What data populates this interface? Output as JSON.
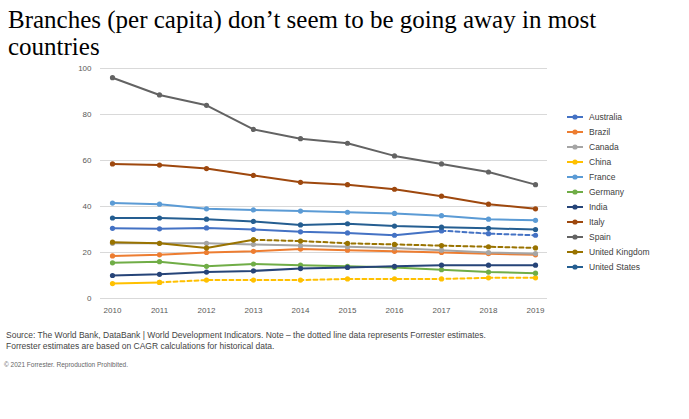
{
  "chart_data": {
    "type": "line",
    "title": "Branches (per capita) don’t seem to be going away in most countries",
    "notes": [
      "Source: The World Bank, DataBank | World Development Indicators. Note – the dotted line data represents Forrester estimates.",
      "Forrester estimates are based on CAGR calculations for historical data."
    ],
    "copyright": "© 2021 Forrester. Reproduction Prohibited.",
    "x": [
      2010,
      2011,
      2012,
      2013,
      2014,
      2015,
      2016,
      2017,
      2018,
      2019
    ],
    "xlim": [
      2010,
      2019
    ],
    "xticks": [
      2010,
      2011,
      2012,
      2013,
      2014,
      2015,
      2016,
      2017,
      2018,
      2019
    ],
    "ylim": [
      0,
      100
    ],
    "yticks": [
      0,
      20,
      40,
      60,
      80,
      100
    ],
    "grid": true,
    "legend": "right",
    "marker": "circle",
    "series": [
      {
        "name": "Australia",
        "color": "#4472c4",
        "line_style": "solid",
        "values": [
          30.5,
          30.3,
          30.7,
          30,
          29,
          28.5,
          27.5,
          29.5,
          null,
          null
        ]
      },
      {
        "name": "Australia",
        "color": "#4472c4",
        "line_style": "dashed",
        "values": [
          null,
          null,
          null,
          null,
          null,
          null,
          null,
          29.5,
          28.2,
          27.5
        ]
      },
      {
        "name": "Brazil",
        "color": "#ed7d31",
        "line_style": "solid",
        "values": [
          18.5,
          19,
          20,
          20.5,
          21.5,
          21,
          20.5,
          20,
          19.5,
          19
        ]
      },
      {
        "name": "Canada",
        "color": "#a5a5a5",
        "line_style": "solid",
        "values": [
          24,
          24,
          24,
          23.5,
          23,
          22.5,
          22,
          21,
          20,
          19.5
        ]
      },
      {
        "name": "China",
        "color": "#ffc000",
        "line_style": "solid",
        "values": [
          6.5,
          7,
          null,
          null,
          null,
          null,
          null,
          null,
          null,
          null
        ]
      },
      {
        "name": "China",
        "color": "#ffc000",
        "line_style": "dashed",
        "values": [
          null,
          7,
          8,
          8,
          8,
          8.5,
          8.5,
          8.5,
          9,
          9
        ]
      },
      {
        "name": "France",
        "color": "#5b9bd5",
        "line_style": "solid",
        "values": [
          41.5,
          41,
          39,
          38.5,
          38,
          37.5,
          37,
          36,
          34.5,
          34
        ]
      },
      {
        "name": "Germany",
        "color": "#70ad47",
        "line_style": "solid",
        "values": [
          15.5,
          16,
          14,
          15,
          14.5,
          14,
          13.5,
          12.5,
          11.5,
          11
        ]
      },
      {
        "name": "India",
        "color": "#264478",
        "line_style": "solid",
        "values": [
          10,
          10.5,
          11.5,
          12,
          13,
          13.5,
          14,
          14.5,
          14.5,
          14.5
        ]
      },
      {
        "name": "Italy",
        "color": "#9e480e",
        "line_style": "solid",
        "values": [
          58.5,
          58,
          56.5,
          53.5,
          50.5,
          49.5,
          47.5,
          44.5,
          41,
          39
        ]
      },
      {
        "name": "Spain",
        "color": "#636363",
        "line_style": "solid",
        "values": [
          96,
          88.5,
          84,
          73.5,
          69.5,
          67.5,
          62,
          58.5,
          55,
          49.5
        ]
      },
      {
        "name": "United Kingdom",
        "color": "#997300",
        "line_style": "solid",
        "values": [
          24.5,
          24,
          22,
          25.5,
          null,
          null,
          null,
          null,
          null,
          null
        ]
      },
      {
        "name": "United Kingdom",
        "color": "#997300",
        "line_style": "dashed",
        "values": [
          null,
          null,
          null,
          25.5,
          25,
          24,
          23.5,
          23,
          22.5,
          22
        ]
      },
      {
        "name": "United States",
        "color": "#255e91",
        "line_style": "solid",
        "values": [
          35,
          35,
          34.5,
          33.5,
          32,
          32.5,
          31.5,
          31,
          30.5,
          30
        ]
      }
    ]
  }
}
